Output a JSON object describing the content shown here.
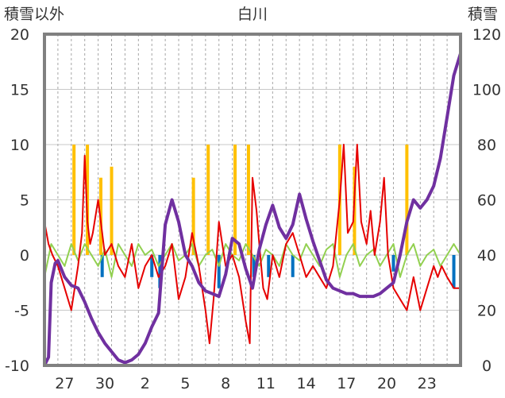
{
  "chart_data": {
    "type": "line",
    "title": "白川",
    "ylabel": "積雪以外",
    "y2label": "積雪",
    "ylim": [
      -10,
      20
    ],
    "y2lim": [
      0,
      120
    ],
    "yticks": [
      -10,
      -5,
      0,
      5,
      10,
      15,
      20
    ],
    "y2ticks": [
      0,
      20,
      40,
      60,
      80,
      100,
      120
    ],
    "xlim": [
      0,
      31
    ],
    "x_tick_labels": [
      {
        "x": 1.5,
        "label": "27"
      },
      {
        "x": 4.5,
        "label": "30"
      },
      {
        "x": 7.5,
        "label": "2"
      },
      {
        "x": 10.5,
        "label": "5"
      },
      {
        "x": 13.5,
        "label": "8"
      },
      {
        "x": 16.5,
        "label": "11"
      },
      {
        "x": 19.5,
        "label": "14"
      },
      {
        "x": 22.5,
        "label": "17"
      },
      {
        "x": 25.5,
        "label": "20"
      },
      {
        "x": 28.5,
        "label": "23"
      }
    ],
    "grid": "horizontal solid, vertical dashed per day",
    "legend": "none",
    "colors": {
      "temperature": "#e60000",
      "snow_depth": "#7030a0",
      "precip_bar": "#ffc000",
      "wind": "#92d050",
      "blue_bar": "#0070c0",
      "frame": "#808080"
    },
    "series": [
      {
        "axis": "left",
        "color": "#e60000",
        "x": [
          0,
          0.3,
          0.6,
          1.0,
          1.5,
          2.0,
          2.5,
          2.8,
          3.0,
          3.2,
          3.4,
          3.6,
          4.0,
          4.5,
          5.0,
          5.5,
          6.0,
          6.5,
          7.0,
          7.5,
          8.0,
          8.5,
          9.0,
          9.5,
          10.0,
          10.5,
          11.0,
          11.5,
          12.0,
          12.3,
          12.6,
          13.0,
          13.5,
          14.0,
          14.5,
          15.0,
          15.3,
          15.5,
          15.8,
          16.0,
          16.3,
          16.6,
          17.0,
          17.5,
          18.0,
          18.5,
          19.0,
          19.5,
          20.0,
          20.5,
          21.0,
          21.5,
          22.0,
          22.3,
          22.6,
          23.0,
          23.3,
          23.6,
          24.0,
          24.3,
          24.6,
          25.0,
          25.3,
          25.6,
          26.0,
          26.5,
          27.0,
          27.5,
          28.0,
          28.5,
          29.0,
          29.3,
          29.6,
          30.0,
          30.5,
          31.0
        ],
        "y": [
          3,
          1,
          0,
          -1,
          -3,
          -5,
          -1,
          2,
          9,
          3,
          1,
          2,
          5,
          0,
          1,
          -1,
          -2,
          1,
          -3,
          -1,
          0,
          -2,
          -1,
          1,
          -4,
          -2,
          2,
          -1,
          -5,
          -8,
          -4,
          3,
          -1,
          0,
          -2,
          -6,
          -8,
          7,
          4,
          1,
          -3,
          -4,
          0,
          -2,
          1,
          2,
          0,
          -2,
          -1,
          -2,
          -3,
          -1,
          5,
          10,
          2,
          3,
          10,
          3,
          1,
          4,
          0,
          3,
          7,
          0,
          -3,
          -4,
          -5,
          -2,
          -5,
          -3,
          -1,
          -2,
          -1,
          -2,
          -3,
          -3
        ]
      },
      {
        "axis": "right",
        "color": "#7030a0",
        "x": [
          0,
          0.3,
          0.5,
          0.8,
          1.0,
          1.5,
          2.0,
          2.5,
          3.0,
          3.5,
          4.0,
          4.5,
          5.0,
          5.5,
          6.0,
          6.5,
          7.0,
          7.5,
          8.0,
          8.5,
          9.0,
          9.5,
          10.0,
          10.5,
          11.0,
          11.5,
          12.0,
          12.5,
          13.0,
          13.5,
          14.0,
          14.5,
          15.0,
          15.5,
          16.0,
          16.5,
          17.0,
          17.5,
          18.0,
          18.5,
          19.0,
          19.5,
          20.0,
          20.5,
          21.0,
          21.5,
          22.0,
          22.5,
          23.0,
          23.5,
          24.0,
          24.5,
          25.0,
          25.5,
          26.0,
          26.5,
          27.0,
          27.5,
          28.0,
          28.5,
          29.0,
          29.5,
          30.0,
          30.5,
          31.0
        ],
        "y": [
          0,
          3,
          30,
          37,
          38,
          32,
          29,
          28,
          23,
          17,
          12,
          8,
          5,
          2,
          1,
          2,
          4,
          8,
          14,
          19,
          51,
          60,
          52,
          40,
          36,
          30,
          27,
          26,
          25,
          33,
          46,
          44,
          35,
          28,
          42,
          51,
          58,
          50,
          46,
          51,
          62,
          53,
          45,
          38,
          31,
          28,
          27,
          26,
          26,
          25,
          25,
          25,
          26,
          28,
          30,
          40,
          52,
          60,
          57,
          60,
          65,
          75,
          90,
          105,
          113
        ]
      },
      {
        "axis": "left",
        "color": "#92d050",
        "x": [
          0,
          0.5,
          1.0,
          1.5,
          2.0,
          2.5,
          3.0,
          3.5,
          4.0,
          4.5,
          5.0,
          5.5,
          6.0,
          6.5,
          7.0,
          7.5,
          8.0,
          8.5,
          9.0,
          9.5,
          10.0,
          10.5,
          11.0,
          11.5,
          12.0,
          12.5,
          13.0,
          13.5,
          14.0,
          14.5,
          15.0,
          15.5,
          16.0,
          16.5,
          17.0,
          17.5,
          18.0,
          18.5,
          19.0,
          19.5,
          20.0,
          20.5,
          21.0,
          21.5,
          22.0,
          22.5,
          23.0,
          23.5,
          24.0,
          24.5,
          25.0,
          25.5,
          26.0,
          26.5,
          27.0,
          27.5,
          28.0,
          28.5,
          29.0,
          29.5,
          30.0,
          30.5,
          31.0
        ],
        "y": [
          -2,
          1,
          0,
          -1,
          1,
          -0.5,
          1,
          0,
          -1,
          0.5,
          -2,
          1,
          0,
          -1,
          1,
          0,
          0.5,
          -1,
          0,
          1,
          -0.5,
          0,
          1,
          -1,
          0,
          0.5,
          -1,
          1,
          0,
          -0.5,
          1,
          0,
          -1,
          0.5,
          0,
          -1,
          1,
          0,
          -0.5,
          1,
          0,
          -1,
          0.5,
          1,
          -2,
          0,
          1,
          -1,
          0,
          0.5,
          -1,
          0,
          1,
          -2,
          0,
          1,
          -1,
          0,
          0.5,
          -1,
          0,
          1,
          0
        ]
      }
    ],
    "bars": [
      {
        "color": "#ffc000",
        "x": 2.2,
        "value": 10
      },
      {
        "color": "#ffc000",
        "x": 3.2,
        "value": 10
      },
      {
        "color": "#ffc000",
        "x": 4.2,
        "value": 7
      },
      {
        "color": "#ffc000",
        "x": 5.0,
        "value": 8
      },
      {
        "color": "#ffc000",
        "x": 11.1,
        "value": 7
      },
      {
        "color": "#ffc000",
        "x": 12.2,
        "value": 10
      },
      {
        "color": "#ffc000",
        "x": 14.2,
        "value": 10
      },
      {
        "color": "#ffc000",
        "x": 15.2,
        "value": 10
      },
      {
        "color": "#ffc000",
        "x": 22.0,
        "value": 10
      },
      {
        "color": "#ffc000",
        "x": 23.1,
        "value": 8
      },
      {
        "color": "#ffc000",
        "x": 27.0,
        "value": 10
      },
      {
        "color": "#0070c0",
        "x": 4.3,
        "value": -2
      },
      {
        "color": "#0070c0",
        "x": 8.0,
        "value": -2
      },
      {
        "color": "#0070c0",
        "x": 8.6,
        "value": -3
      },
      {
        "color": "#0070c0",
        "x": 13.0,
        "value": -3
      },
      {
        "color": "#0070c0",
        "x": 15.6,
        "value": -2
      },
      {
        "color": "#0070c0",
        "x": 16.7,
        "value": -2
      },
      {
        "color": "#0070c0",
        "x": 18.5,
        "value": -2
      },
      {
        "color": "#0070c0",
        "x": 26.0,
        "value": -1.5
      },
      {
        "color": "#0070c0",
        "x": 30.5,
        "value": -3
      }
    ]
  }
}
